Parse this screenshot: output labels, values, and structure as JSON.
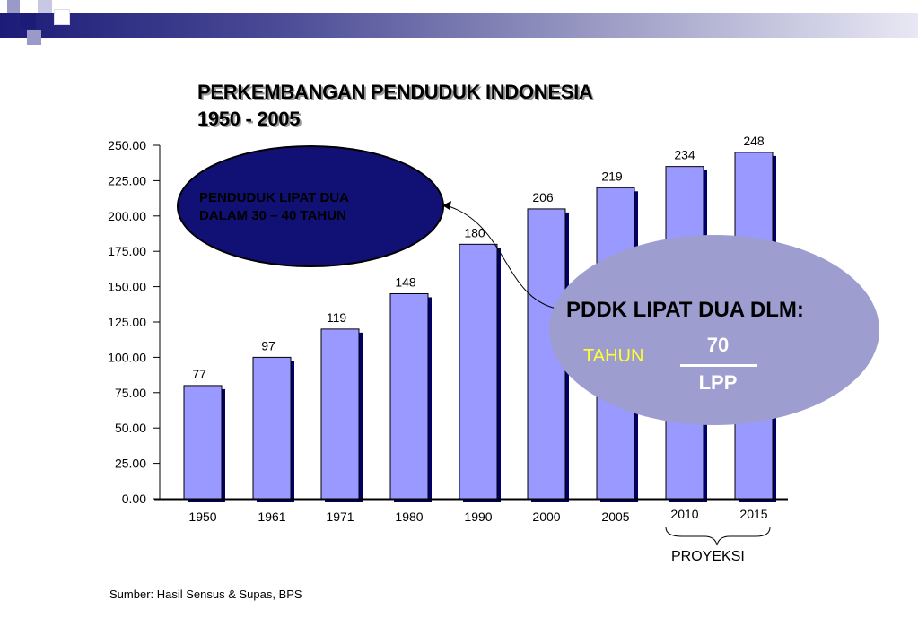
{
  "chart_data": {
    "type": "bar",
    "title": "PERKEMBANGAN PENDUDUK INDONESIA",
    "subtitle": "1950 - 2005",
    "categories": [
      "1950",
      "1961",
      "1971",
      "1980",
      "1990",
      "2000",
      "2005",
      "2010",
      "2015"
    ],
    "values": [
      77,
      97,
      119,
      148,
      180,
      206,
      219,
      234,
      248
    ],
    "bar_heights": [
      80,
      100,
      120,
      145,
      180,
      205,
      220,
      235,
      245
    ],
    "data_labels": [
      "77",
      "97",
      "119",
      "148",
      "180",
      "206",
      "219",
      "234",
      "248"
    ],
    "y_ticks": [
      "250.00",
      "225.00",
      "200.00",
      "175.00",
      "150.00",
      "125.00",
      "100.00",
      "75.00",
      "50.00",
      "25.00",
      "0.00"
    ],
    "ylim": [
      0,
      250
    ],
    "grid": false,
    "bar_color": "#9999ff",
    "shadow_color": "#000066"
  },
  "callout_left": {
    "line1": "PENDUDUK LIPAT DUA",
    "line2": "DALAM 30 – 40 TAHUN",
    "color": "#101075"
  },
  "callout_right": {
    "heading": "PDDK LIPAT DUA DLM:",
    "tahun": "TAHUN",
    "numerator": "70",
    "denominator": "LPP",
    "color": "#9d9dcf"
  },
  "projection_label": "PROYEKSI",
  "source": "Sumber: Hasil Sensus & Supas, BPS"
}
